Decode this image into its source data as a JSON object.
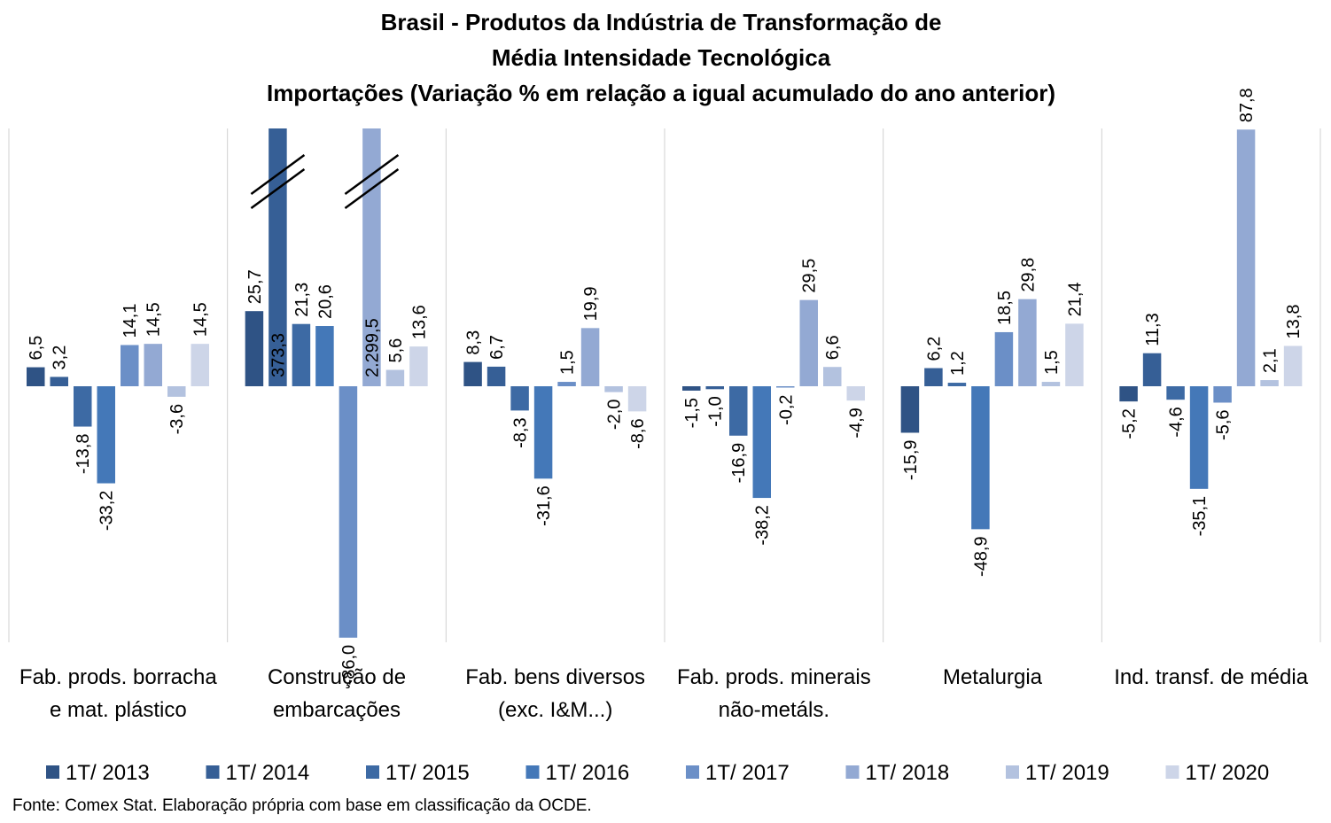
{
  "chart_data": {
    "type": "bar",
    "title": [
      "Brasil - Produtos da Indústria de Transformação de",
      "Média Intensidade Tecnológica",
      "Importações (Variação % em relação a igual acumulado do ano anterior)"
    ],
    "categories": [
      [
        "Fab. prods. borracha",
        "e mat. plástico"
      ],
      [
        "Construção de",
        "embarcações"
      ],
      [
        "Fab. bens diversos",
        "(exc. I&M...)"
      ],
      [
        "Fab. prods. minerais",
        "não-metáls."
      ],
      [
        "Metalurgia"
      ],
      [
        "Ind. transf. de média"
      ]
    ],
    "series": [
      {
        "name": "1T/ 2013",
        "color": "#2f5385",
        "values": [
          6.5,
          25.7,
          8.3,
          -1.5,
          -15.9,
          -5.2
        ],
        "labels": [
          "6,5",
          "25,7",
          "8,3",
          "-1,5",
          "-15,9",
          "-5,2"
        ]
      },
      {
        "name": "1T/ 2014",
        "color": "#365f96",
        "values": [
          3.2,
          373.3,
          6.7,
          -1.0,
          6.2,
          11.3
        ],
        "labels": [
          "3,2",
          "373,3",
          "6,7",
          "-1,0",
          "6,2",
          "11,3"
        ],
        "broken": [
          1
        ]
      },
      {
        "name": "1T/ 2015",
        "color": "#3d6aa4",
        "values": [
          -13.8,
          21.3,
          -8.3,
          -16.9,
          1.2,
          -4.6
        ],
        "labels": [
          "-13,8",
          "21,3",
          "-8,3",
          "-16,9",
          "1,2",
          "-4,6"
        ]
      },
      {
        "name": "1T/ 2016",
        "color": "#4478b8",
        "values": [
          -33.2,
          20.6,
          -31.6,
          -38.2,
          -48.9,
          -35.1
        ],
        "labels": [
          "-33,2",
          "20,6",
          "-31,6",
          "-38,2",
          "-48,9",
          "-35,1"
        ]
      },
      {
        "name": "1T/ 2017",
        "color": "#6b8fc7",
        "values": [
          14.1,
          -86.0,
          1.5,
          -0.2,
          18.5,
          -5.6
        ],
        "labels": [
          "14,1",
          "-86,0",
          "1,5",
          "-0,2",
          "18,5",
          "-5,6"
        ]
      },
      {
        "name": "1T/ 2018",
        "color": "#93a9d3",
        "values": [
          14.5,
          2299.5,
          19.9,
          29.5,
          29.8,
          87.8
        ],
        "labels": [
          "14,5",
          "2.299,5",
          "19,9",
          "29,5",
          "29,8",
          "87,8"
        ],
        "broken": [
          1
        ]
      },
      {
        "name": "1T/ 2019",
        "color": "#b3c2df",
        "values": [
          -3.6,
          5.6,
          -2.0,
          6.6,
          1.5,
          2.1
        ],
        "labels": [
          "-3,6",
          "5,6",
          "-2,0",
          "6,6",
          "1,5",
          "2,1"
        ]
      },
      {
        "name": "1T/ 2020",
        "color": "#cdd5e8",
        "values": [
          14.5,
          13.6,
          -8.6,
          -4.9,
          21.4,
          13.8
        ],
        "labels": [
          "14,5",
          "13,6",
          "-8,6",
          "-4,9",
          "21,4",
          "13,8"
        ]
      }
    ],
    "ylim": [
      -86.5,
      88
    ],
    "grid": false,
    "legend_position": "bottom"
  },
  "source_note": "Fonte: Comex Stat. Elaboração própria com base em classificação da OCDE."
}
